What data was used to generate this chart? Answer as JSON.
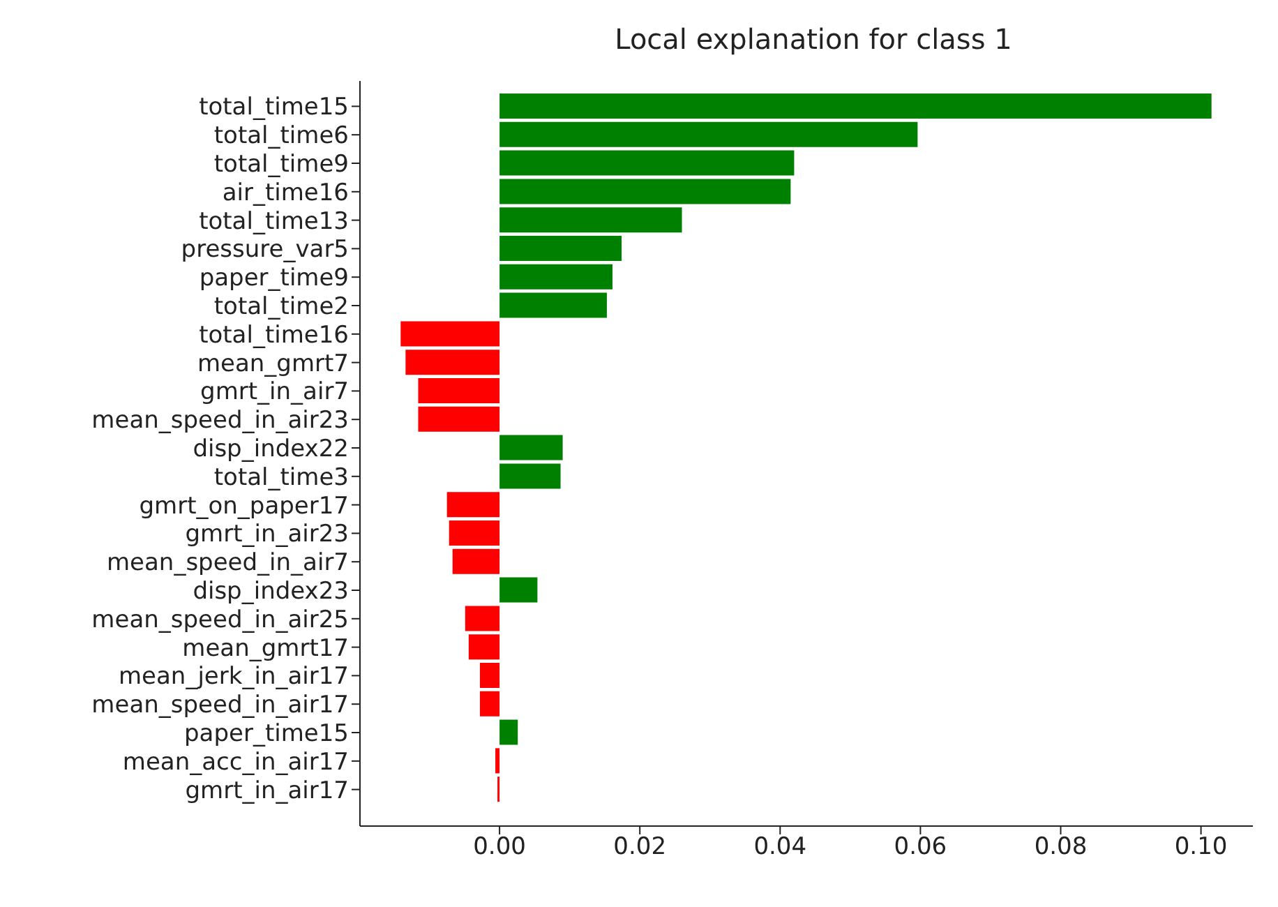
{
  "chart_data": {
    "type": "bar",
    "orientation": "horizontal",
    "title": "Local explanation for class 1",
    "categories": [
      "total_time15",
      "total_time6",
      "total_time9",
      "air_time16",
      "total_time13",
      "pressure_var5",
      "paper_time9",
      "total_time2",
      "total_time16",
      "mean_gmrt7",
      "gmrt_in_air7",
      "mean_speed_in_air23",
      "disp_index22",
      "total_time3",
      "gmrt_on_paper17",
      "gmrt_in_air23",
      "mean_speed_in_air7",
      "disp_index23",
      "mean_speed_in_air25",
      "mean_gmrt17",
      "mean_jerk_in_air17",
      "mean_speed_in_air17",
      "paper_time15",
      "mean_acc_in_air17",
      "gmrt_in_air17"
    ],
    "values": [
      0.1015,
      0.0596,
      0.042,
      0.0415,
      0.026,
      0.0174,
      0.0161,
      0.0153,
      -0.0141,
      -0.0134,
      -0.0116,
      -0.0116,
      0.009,
      0.0087,
      -0.0075,
      -0.0072,
      -0.0067,
      0.0054,
      -0.0049,
      -0.0044,
      -0.0028,
      -0.0028,
      0.0026,
      -0.0006,
      -0.0003
    ],
    "colors": [
      "#008000",
      "#008000",
      "#008000",
      "#008000",
      "#008000",
      "#008000",
      "#008000",
      "#008000",
      "#ff0000",
      "#ff0000",
      "#ff0000",
      "#ff0000",
      "#008000",
      "#008000",
      "#ff0000",
      "#ff0000",
      "#ff0000",
      "#008000",
      "#ff0000",
      "#ff0000",
      "#ff0000",
      "#ff0000",
      "#008000",
      "#ff0000",
      "#ff0000"
    ],
    "xlim": [
      -0.0199,
      0.1074
    ],
    "xticks": [
      {
        "value": 0,
        "label": "0.00"
      },
      {
        "value": 0.02,
        "label": "0.02"
      },
      {
        "value": 0.04,
        "label": "0.04"
      },
      {
        "value": 0.06,
        "label": "0.06"
      },
      {
        "value": 0.08,
        "label": "0.08"
      },
      {
        "value": 0.1,
        "label": "0.10"
      }
    ],
    "grid": false
  }
}
